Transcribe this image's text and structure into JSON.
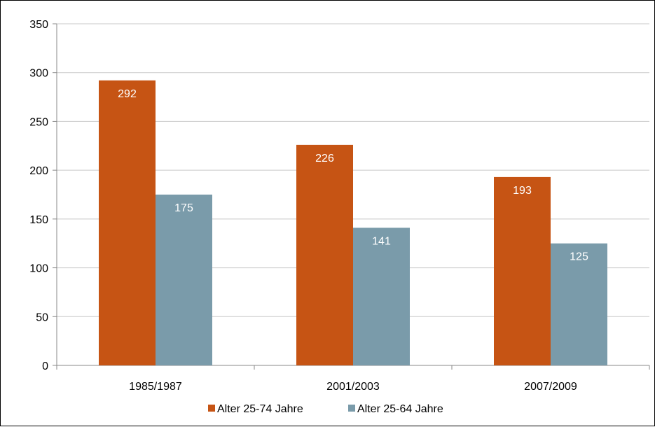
{
  "chart_data": {
    "type": "bar",
    "categories": [
      "1985/1987",
      "2001/2003",
      "2007/2009"
    ],
    "series": [
      {
        "name": "Alter 25-74 Jahre",
        "values": [
          292,
          226,
          193
        ],
        "color": "#C65414"
      },
      {
        "name": "Alter 25-64 Jahre",
        "values": [
          175,
          141,
          125
        ],
        "color": "#7A9BAA"
      }
    ],
    "ylim": [
      0,
      350
    ],
    "yticks": [
      0,
      50,
      100,
      150,
      200,
      250,
      300,
      350
    ],
    "grid": true,
    "legend": "bottom",
    "data_labels": true
  }
}
